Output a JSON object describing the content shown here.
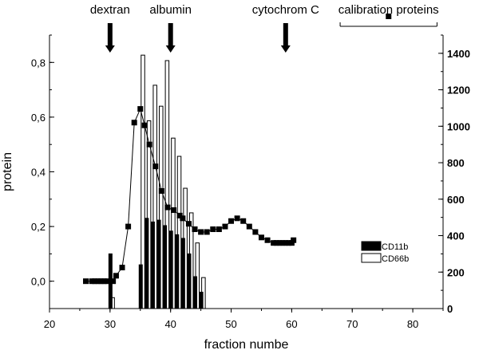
{
  "chart_data": {
    "type": "bar",
    "markers": [
      {
        "label": "dextran",
        "x": 30
      },
      {
        "label": "albumin",
        "x": 40
      },
      {
        "label": "cytochrom C",
        "x": 59
      }
    ],
    "calibration_label": "calibration proteins",
    "calibration_range": [
      68,
      84
    ],
    "x_axis": {
      "label": "fraction numbe",
      "range": [
        20,
        85
      ],
      "ticks": [
        20,
        30,
        40,
        50,
        60,
        70,
        80
      ],
      "tick_labels": [
        "20",
        "30",
        "40",
        "50",
        "60",
        "70",
        "80"
      ]
    },
    "y_axis_left": {
      "label": "protein",
      "range": [
        -0.1,
        0.9
      ],
      "ticks": [
        0.0,
        0.2,
        0.4,
        0.6,
        0.8
      ],
      "tick_labels": [
        "0,0",
        "0,2",
        "0,4",
        "0,6",
        "0,8"
      ]
    },
    "y_axis_right": {
      "range": [
        0,
        1500
      ],
      "ticks": [
        0,
        200,
        400,
        600,
        800,
        1000,
        1200,
        1400
      ],
      "tick_labels": [
        "0",
        "200",
        "400",
        "600",
        "800",
        "1000",
        "1200",
        "1400"
      ]
    },
    "legend": {
      "position": "right",
      "entries": [
        {
          "name": "CD11b",
          "fill": "#000000"
        },
        {
          "name": "CD66b",
          "fill": "#ffffff"
        }
      ]
    },
    "series": [
      {
        "name": "protein",
        "kind": "line",
        "axis": "left",
        "points": [
          [
            26,
            0.0
          ],
          [
            27,
            0.0
          ],
          [
            27.5,
            0.0
          ],
          [
            28,
            0.0
          ],
          [
            28.5,
            0.0
          ],
          [
            29,
            0.0
          ],
          [
            29.5,
            0.0
          ],
          [
            30.5,
            0.0
          ],
          [
            31,
            0.02
          ],
          [
            32,
            0.05
          ],
          [
            33,
            0.2
          ],
          [
            34,
            0.58
          ],
          [
            35,
            0.63
          ],
          [
            35.7,
            0.57
          ],
          [
            36.5,
            0.5
          ],
          [
            37.5,
            0.42
          ],
          [
            38.5,
            0.33
          ],
          [
            39.5,
            0.27
          ],
          [
            40.5,
            0.26
          ],
          [
            41.5,
            0.24
          ],
          [
            42,
            0.23
          ],
          [
            43,
            0.21
          ],
          [
            44,
            0.19
          ],
          [
            45,
            0.18
          ],
          [
            46,
            0.18
          ],
          [
            47,
            0.19
          ],
          [
            48,
            0.19
          ],
          [
            49,
            0.2
          ],
          [
            50,
            0.22
          ],
          [
            51,
            0.23
          ],
          [
            52,
            0.22
          ],
          [
            53,
            0.2
          ],
          [
            54,
            0.18
          ],
          [
            55,
            0.16
          ],
          [
            56,
            0.15
          ],
          [
            57,
            0.14
          ],
          [
            57.5,
            0.14
          ],
          [
            58,
            0.14
          ],
          [
            58.5,
            0.14
          ],
          [
            59,
            0.14
          ],
          [
            59.5,
            0.14
          ],
          [
            60,
            0.14
          ],
          [
            60.3,
            0.15
          ]
        ]
      },
      {
        "name": "CD11b",
        "kind": "bar",
        "axis": "right",
        "points": [
          [
            30,
            300
          ],
          [
            35,
            240
          ],
          [
            36,
            495
          ],
          [
            37,
            475
          ],
          [
            38,
            485
          ],
          [
            39,
            455
          ],
          [
            40,
            425
          ],
          [
            41,
            405
          ],
          [
            42,
            385
          ],
          [
            43,
            300
          ],
          [
            44,
            175
          ],
          [
            45,
            90
          ]
        ]
      },
      {
        "name": "CD66b",
        "kind": "bar",
        "axis": "right",
        "points": [
          [
            30,
            60
          ],
          [
            35,
            1390
          ],
          [
            36,
            1030
          ],
          [
            37,
            1225
          ],
          [
            38,
            1110
          ],
          [
            39,
            1360
          ],
          [
            40,
            935
          ],
          [
            41,
            835
          ],
          [
            42,
            660
          ],
          [
            43,
            525
          ],
          [
            44,
            360
          ],
          [
            45,
            170
          ]
        ]
      }
    ]
  }
}
